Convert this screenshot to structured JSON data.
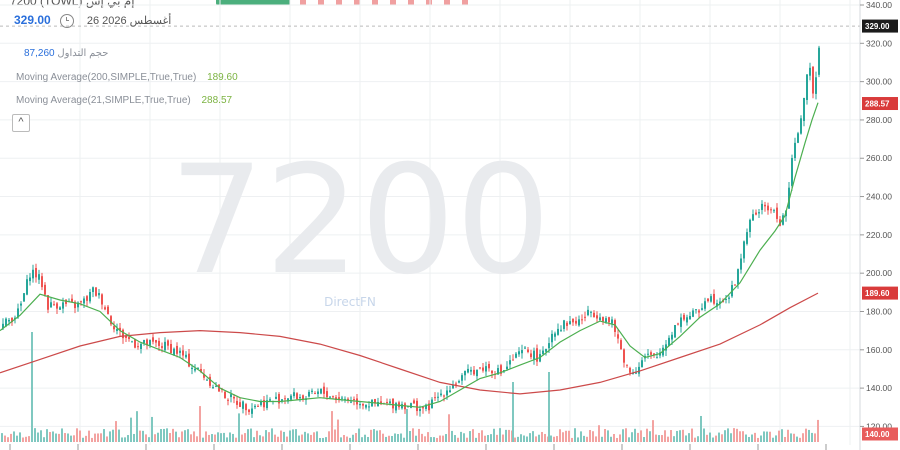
{
  "header": {
    "truncated_title": "7200 (TOWL) إم بي إس",
    "price": "329.00",
    "date": "26 أغسطس 2026"
  },
  "legend": {
    "volume_label": "حجم التداول",
    "volume_value": "87,260",
    "ma200_label": "Moving Average(200,SIMPLE,True,True)",
    "ma200_value": "189.60",
    "ma21_label": "Moving Average(21,SIMPLE,True,True)",
    "ma21_value": "288.57"
  },
  "watermark": {
    "symbol": "7200",
    "brand": "DirectFN"
  },
  "badges": {
    "last": {
      "value": "329.00",
      "color": "#1b1b1b"
    },
    "ma21": {
      "value": "288.57",
      "color": "#d93b3b"
    },
    "ma200": {
      "value": "189.60",
      "color": "#d93b3b"
    },
    "volume": {
      "value": "140.00",
      "color": "#e85c5c"
    }
  },
  "colors": {
    "up": "#26a69a",
    "down": "#ef5350",
    "ma21": "#4caf50",
    "ma200": "#cc4a4a",
    "grid": "#eef0f2",
    "axis_text": "#555555"
  },
  "icons": {
    "collapse": "chevron-up-icon",
    "clock": "clock-icon"
  },
  "chart_data": {
    "type": "candlestick",
    "ylim": [
      115,
      340
    ],
    "yticks": [
      120,
      140,
      160,
      180,
      200,
      220,
      240,
      260,
      280,
      300,
      320,
      340
    ],
    "close_path": [
      [
        0,
        172
      ],
      [
        18,
        180
      ],
      [
        30,
        202
      ],
      [
        40,
        196
      ],
      [
        47,
        183
      ],
      [
        60,
        184
      ],
      [
        75,
        183
      ],
      [
        85,
        186
      ],
      [
        92,
        191
      ],
      [
        100,
        187
      ],
      [
        110,
        175
      ],
      [
        120,
        168
      ],
      [
        135,
        163
      ],
      [
        150,
        163
      ],
      [
        165,
        162
      ],
      [
        180,
        158
      ],
      [
        190,
        152
      ],
      [
        200,
        148
      ],
      [
        210,
        143
      ],
      [
        222,
        137
      ],
      [
        235,
        133
      ],
      [
        248,
        130
      ],
      [
        260,
        132
      ],
      [
        275,
        134
      ],
      [
        290,
        136
      ],
      [
        305,
        135
      ],
      [
        320,
        138
      ],
      [
        335,
        135
      ],
      [
        350,
        134
      ],
      [
        365,
        132
      ],
      [
        380,
        131
      ],
      [
        395,
        132
      ],
      [
        410,
        131
      ],
      [
        425,
        129
      ],
      [
        440,
        137
      ],
      [
        455,
        143
      ],
      [
        470,
        149
      ],
      [
        485,
        151
      ],
      [
        500,
        148
      ],
      [
        512,
        155
      ],
      [
        525,
        160
      ],
      [
        540,
        155
      ],
      [
        552,
        170
      ],
      [
        565,
        174
      ],
      [
        578,
        175
      ],
      [
        590,
        180
      ],
      [
        600,
        178
      ],
      [
        612,
        173
      ],
      [
        620,
        160
      ],
      [
        628,
        148
      ],
      [
        635,
        150
      ],
      [
        645,
        157
      ],
      [
        655,
        155
      ],
      [
        665,
        164
      ],
      [
        678,
        176
      ],
      [
        690,
        178
      ],
      [
        698,
        180
      ],
      [
        705,
        188
      ],
      [
        715,
        186
      ],
      [
        728,
        188
      ],
      [
        736,
        198
      ],
      [
        745,
        222
      ],
      [
        755,
        232
      ],
      [
        765,
        235
      ],
      [
        772,
        232
      ],
      [
        780,
        226
      ],
      [
        786,
        235
      ],
      [
        790,
        255
      ],
      [
        796,
        272
      ],
      [
        802,
        288
      ],
      [
        808,
        308
      ],
      [
        812,
        296
      ],
      [
        815,
        302
      ],
      [
        818,
        320
      ],
      [
        819,
        329
      ]
    ],
    "ma21_path": [
      [
        0,
        170
      ],
      [
        20,
        178
      ],
      [
        40,
        189
      ],
      [
        60,
        186
      ],
      [
        80,
        184
      ],
      [
        100,
        180
      ],
      [
        120,
        170
      ],
      [
        140,
        164
      ],
      [
        160,
        160
      ],
      [
        180,
        156
      ],
      [
        200,
        149
      ],
      [
        220,
        140
      ],
      [
        240,
        135
      ],
      [
        260,
        133
      ],
      [
        280,
        133
      ],
      [
        300,
        134
      ],
      [
        320,
        135
      ],
      [
        340,
        134
      ],
      [
        360,
        133
      ],
      [
        380,
        132
      ],
      [
        400,
        131
      ],
      [
        420,
        130
      ],
      [
        440,
        133
      ],
      [
        460,
        139
      ],
      [
        480,
        145
      ],
      [
        500,
        148
      ],
      [
        520,
        152
      ],
      [
        540,
        156
      ],
      [
        560,
        164
      ],
      [
        580,
        170
      ],
      [
        600,
        175
      ],
      [
        615,
        173
      ],
      [
        630,
        162
      ],
      [
        645,
        156
      ],
      [
        660,
        158
      ],
      [
        680,
        167
      ],
      [
        700,
        177
      ],
      [
        720,
        184
      ],
      [
        740,
        195
      ],
      [
        760,
        212
      ],
      [
        775,
        222
      ],
      [
        785,
        230
      ],
      [
        795,
        250
      ],
      [
        805,
        268
      ],
      [
        812,
        280
      ],
      [
        818,
        289
      ]
    ],
    "ma200_path": [
      [
        0,
        148
      ],
      [
        40,
        155
      ],
      [
        80,
        162
      ],
      [
        120,
        167
      ],
      [
        160,
        169
      ],
      [
        200,
        170
      ],
      [
        240,
        169
      ],
      [
        280,
        167
      ],
      [
        320,
        163
      ],
      [
        360,
        157
      ],
      [
        400,
        150
      ],
      [
        440,
        143
      ],
      [
        480,
        139
      ],
      [
        520,
        137
      ],
      [
        560,
        139
      ],
      [
        600,
        143
      ],
      [
        640,
        149
      ],
      [
        680,
        156
      ],
      [
        720,
        163
      ],
      [
        760,
        173
      ],
      [
        790,
        182
      ],
      [
        818,
        189.6
      ]
    ],
    "volume": {
      "max_label": "140.00"
    }
  }
}
